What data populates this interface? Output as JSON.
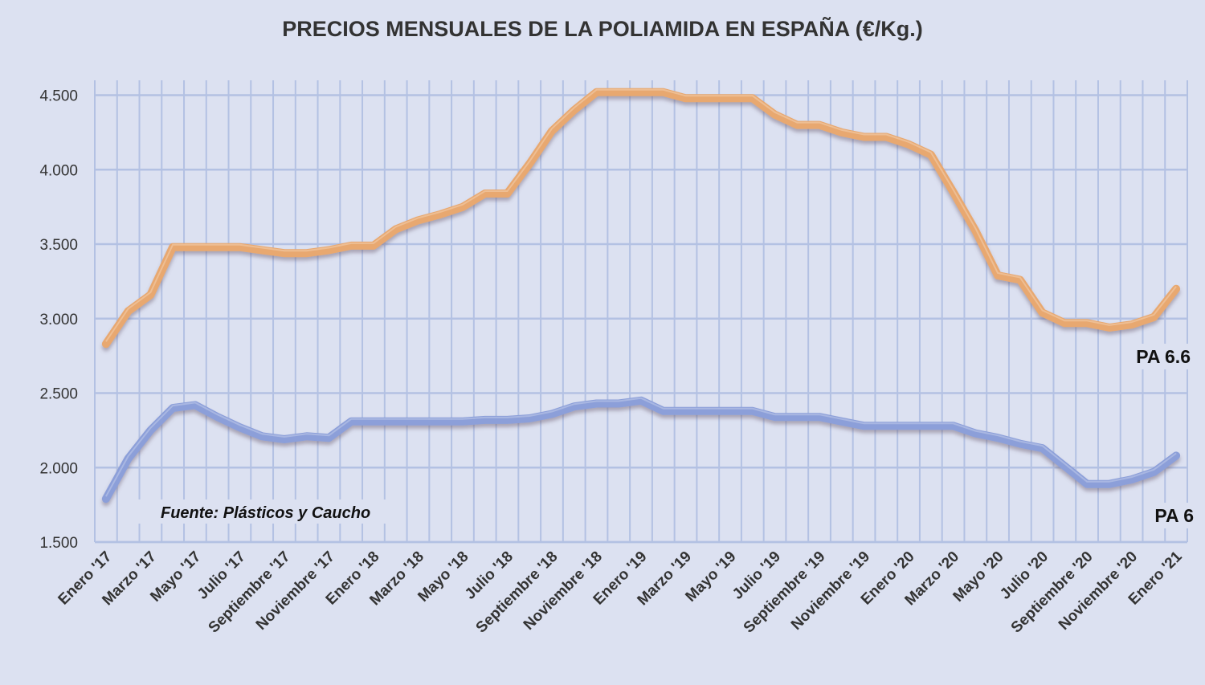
{
  "chart_data": {
    "type": "line",
    "title": "PRECIOS MENSUALES DE LA POLIAMIDA EN ESPAÑA (€/Kg.)",
    "xlabel": "",
    "ylabel": "",
    "ylim": [
      1.5,
      4.6
    ],
    "yticks": [
      1.5,
      2.0,
      2.5,
      3.0,
      3.5,
      4.0,
      4.5
    ],
    "ytick_labels": [
      "1.500",
      "2.000",
      "2.500",
      "3.000",
      "3.500",
      "4.000",
      "4.500"
    ],
    "grid": true,
    "x_count": 49,
    "xtick_labels": [
      "Enero '17",
      "Marzo '17",
      "Mayo '17",
      "Julio '17",
      "Septiembre  '17",
      "Noviembre '17",
      "Enero '18",
      "Marzo '18",
      "Mayo '18",
      "Julio '18",
      "Septiembre  '18",
      "Noviembre '18",
      "Enero '19",
      "Marzo '19",
      "Mayo '19",
      "Julio '19",
      "Septiembre '19",
      "Noviembre '19",
      "Enero '20",
      "Marzo '20",
      "Mayo '20",
      "Julio '20",
      "Septiembre '20",
      "Noviembre '20",
      "Enero '21"
    ],
    "series": [
      {
        "name": "PA 6.6",
        "color": "#e8a86f",
        "values": [
          2.83,
          3.05,
          3.16,
          3.48,
          3.48,
          3.48,
          3.48,
          3.46,
          3.44,
          3.44,
          3.46,
          3.49,
          3.49,
          3.6,
          3.66,
          3.7,
          3.75,
          3.84,
          3.84,
          4.04,
          4.26,
          4.4,
          4.52,
          4.52,
          4.52,
          4.52,
          4.48,
          4.48,
          4.48,
          4.48,
          4.37,
          4.3,
          4.3,
          4.25,
          4.22,
          4.22,
          4.17,
          4.1,
          3.85,
          3.59,
          3.29,
          3.26,
          3.04,
          2.97,
          2.97,
          2.94,
          2.96,
          3.01,
          3.2
        ]
      },
      {
        "name": "PA 6",
        "color": "#8c9fd9",
        "values": [
          1.79,
          2.06,
          2.25,
          2.4,
          2.42,
          2.34,
          2.27,
          2.21,
          2.19,
          2.21,
          2.2,
          2.31,
          2.31,
          2.31,
          2.31,
          2.31,
          2.31,
          2.32,
          2.32,
          2.33,
          2.36,
          2.41,
          2.43,
          2.43,
          2.45,
          2.38,
          2.38,
          2.38,
          2.38,
          2.38,
          2.34,
          2.34,
          2.34,
          2.31,
          2.28,
          2.28,
          2.28,
          2.28,
          2.28,
          2.23,
          2.2,
          2.16,
          2.13,
          2.01,
          1.89,
          1.89,
          1.92,
          1.97,
          2.08
        ]
      }
    ],
    "annotations": {
      "source": "Fuente: Plásticos  y Caucho"
    }
  }
}
